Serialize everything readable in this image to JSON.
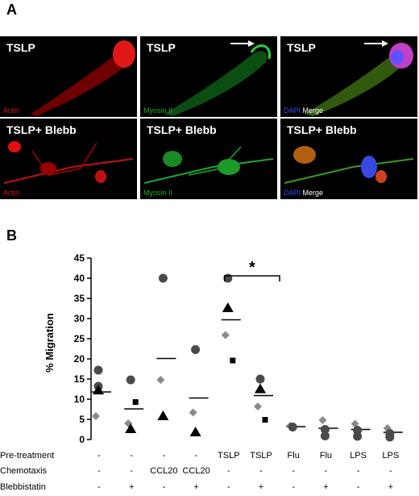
{
  "panel_a": {
    "letter": "A",
    "images": [
      {
        "title": "TSLP",
        "stain": [
          {
            "text": "Actin",
            "color": "red"
          }
        ]
      },
      {
        "title": "TSLP",
        "stain": [
          {
            "text": "Myosin II",
            "color": "green"
          }
        ]
      },
      {
        "title": "TSLP",
        "stain": [
          {
            "text": "DAPI",
            "color": "blue"
          },
          {
            "text": " Merge",
            "color": "white"
          }
        ]
      },
      {
        "title": "TSLP+ Blebb",
        "stain": [
          {
            "text": "Actin",
            "color": "red"
          }
        ]
      },
      {
        "title": "TSLP+ Blebb",
        "stain": [
          {
            "text": "Myosin II",
            "color": "green"
          }
        ]
      },
      {
        "title": "TSLP+ Blebb",
        "stain": [
          {
            "text": "DAPI",
            "color": "blue"
          },
          {
            "text": " Merge",
            "color": "white"
          }
        ]
      }
    ]
  },
  "panel_b": {
    "letter": "B"
  },
  "chart_data": {
    "type": "scatter",
    "ylabel": "% Migration",
    "ylim": [
      0,
      45
    ],
    "yticks": [
      0,
      5,
      10,
      15,
      20,
      25,
      30,
      35,
      40,
      45
    ],
    "groups": 10,
    "significance": {
      "from": 4,
      "to": 5,
      "label": "*"
    },
    "means": [
      11.8,
      7.6,
      20.1,
      10.3,
      29.7,
      10.9,
      3.2,
      2.8,
      2.5,
      1.8
    ],
    "points": [
      {
        "g": 0,
        "shape": "circle",
        "y": 17.2
      },
      {
        "g": 0,
        "shape": "circle",
        "y": 13.2
      },
      {
        "g": 0,
        "shape": "triangle",
        "y": 12.2
      },
      {
        "g": 0,
        "shape": "diamond",
        "y": 5.8
      },
      {
        "g": 1,
        "shape": "circle",
        "y": 14.8
      },
      {
        "g": 1,
        "shape": "square",
        "y": 9.3
      },
      {
        "g": 1,
        "shape": "diamond",
        "y": 4.0
      },
      {
        "g": 1,
        "shape": "triangle",
        "y": 2.6
      },
      {
        "g": 2,
        "shape": "circle",
        "y": 40.0
      },
      {
        "g": 2,
        "shape": "diamond",
        "y": 14.8
      },
      {
        "g": 2,
        "shape": "triangle",
        "y": 5.8
      },
      {
        "g": 3,
        "shape": "circle",
        "y": 22.3
      },
      {
        "g": 3,
        "shape": "diamond",
        "y": 6.7
      },
      {
        "g": 3,
        "shape": "triangle",
        "y": 1.8
      },
      {
        "g": 4,
        "shape": "circle",
        "y": 40.0
      },
      {
        "g": 4,
        "shape": "triangle",
        "y": 32.6
      },
      {
        "g": 4,
        "shape": "diamond",
        "y": 25.9
      },
      {
        "g": 4,
        "shape": "square",
        "y": 19.6
      },
      {
        "g": 5,
        "shape": "circle",
        "y": 15.0
      },
      {
        "g": 5,
        "shape": "triangle",
        "y": 12.5
      },
      {
        "g": 5,
        "shape": "diamond",
        "y": 8.2
      },
      {
        "g": 5,
        "shape": "square",
        "y": 4.9
      },
      {
        "g": 6,
        "shape": "diamond",
        "y": 3.4
      },
      {
        "g": 6,
        "shape": "circle",
        "y": 3.1
      },
      {
        "g": 7,
        "shape": "diamond",
        "y": 4.8
      },
      {
        "g": 7,
        "shape": "circle",
        "y": 2.5
      },
      {
        "g": 7,
        "shape": "circle",
        "y": 0.9
      },
      {
        "g": 8,
        "shape": "diamond",
        "y": 3.9
      },
      {
        "g": 8,
        "shape": "circle",
        "y": 2.3
      },
      {
        "g": 8,
        "shape": "circle",
        "y": 0.8
      },
      {
        "g": 9,
        "shape": "diamond",
        "y": 2.8
      },
      {
        "g": 9,
        "shape": "circle",
        "y": 1.5
      },
      {
        "g": 9,
        "shape": "circle",
        "y": 0.6
      }
    ],
    "conditions": [
      {
        "label": "Pre-treatment",
        "values": [
          "-",
          "-",
          "-",
          "-",
          "TSLP",
          "TSLP",
          "Flu",
          "Flu",
          "LPS",
          "LPS"
        ]
      },
      {
        "label": "Chemotaxis",
        "values": [
          "-",
          "-",
          "CCL20",
          "CCL20",
          "-",
          "-",
          "-",
          "-",
          "-",
          "-"
        ]
      },
      {
        "label": "Blebbistatin",
        "values": [
          "-",
          "+",
          "-",
          "+",
          "-",
          "+",
          "-",
          "+",
          "-",
          "+"
        ]
      }
    ]
  }
}
